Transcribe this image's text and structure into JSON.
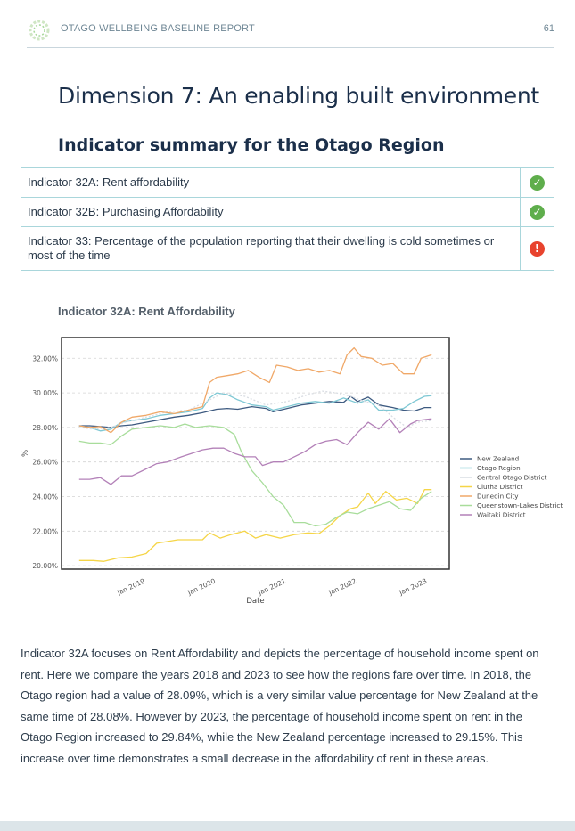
{
  "header": {
    "title": "OTAGO WELLBEING BASELINE REPORT",
    "page_number": "61",
    "logo_icon": "wellbeing-wreath-logo"
  },
  "dimension_title": "Dimension 7: An enabling built environment",
  "summary_title": "Indicator summary for the Otago Region",
  "indicators": [
    {
      "label": "Indicator 32A: Rent affordability",
      "status": "positive",
      "status_icon": "check-circle-icon",
      "color": "#5fae4c"
    },
    {
      "label": "Indicator 32B: Purchasing Affordability",
      "status": "positive",
      "status_icon": "check-circle-icon",
      "color": "#5fae4c"
    },
    {
      "label": "Indicator 33: Percentage of the population reporting that their dwelling is cold sometimes or most of the time",
      "status": "negative",
      "status_icon": "exclamation-circle-icon",
      "color": "#e8432e"
    }
  ],
  "chart_title": "Indicator 32A: Rent Affordability",
  "chart_data": {
    "type": "line",
    "xlabel": "Date",
    "ylabel": "%",
    "xlim": [
      2018.0,
      2023.5
    ],
    "ylim": [
      19.8,
      33.2
    ],
    "yticks": [
      20,
      22,
      24,
      26,
      28,
      30,
      32
    ],
    "ytick_labels": [
      "20.00%",
      "22.00%",
      "24.00%",
      "26.00%",
      "28.00%",
      "30.00%",
      "32.00%"
    ],
    "xticks": [
      2019,
      2020,
      2021,
      2022,
      2023
    ],
    "xtick_labels": [
      "Jan 2019",
      "Jan 2020",
      "Jan 2021",
      "Jan 2022",
      "Jan 2023"
    ],
    "grid": true,
    "legend_position": "right",
    "series": [
      {
        "name": "New Zealand",
        "color": "#3d5a80",
        "points": [
          [
            2018.25,
            28.1
          ],
          [
            2018.4,
            28.1
          ],
          [
            2018.55,
            28.05
          ],
          [
            2018.7,
            28.0
          ],
          [
            2018.85,
            28.1
          ],
          [
            2019.0,
            28.15
          ],
          [
            2019.2,
            28.3
          ],
          [
            2019.4,
            28.45
          ],
          [
            2019.6,
            28.6
          ],
          [
            2019.8,
            28.7
          ],
          [
            2020.0,
            28.85
          ],
          [
            2020.2,
            29.05
          ],
          [
            2020.35,
            29.1
          ],
          [
            2020.5,
            29.05
          ],
          [
            2020.7,
            29.2
          ],
          [
            2020.9,
            29.1
          ],
          [
            2021.0,
            28.9
          ],
          [
            2021.2,
            29.1
          ],
          [
            2021.4,
            29.3
          ],
          [
            2021.6,
            29.4
          ],
          [
            2021.8,
            29.5
          ],
          [
            2022.0,
            29.45
          ],
          [
            2022.1,
            29.8
          ],
          [
            2022.2,
            29.5
          ],
          [
            2022.35,
            29.75
          ],
          [
            2022.5,
            29.3
          ],
          [
            2022.7,
            29.15
          ],
          [
            2022.85,
            29.0
          ],
          [
            2023.0,
            28.95
          ],
          [
            2023.15,
            29.15
          ],
          [
            2023.25,
            29.15
          ]
        ]
      },
      {
        "name": "Otago Region",
        "color": "#7fc8d4",
        "points": [
          [
            2018.25,
            28.09
          ],
          [
            2018.4,
            28.0
          ],
          [
            2018.55,
            27.8
          ],
          [
            2018.7,
            27.9
          ],
          [
            2018.85,
            28.3
          ],
          [
            2019.0,
            28.4
          ],
          [
            2019.2,
            28.5
          ],
          [
            2019.4,
            28.7
          ],
          [
            2019.6,
            28.8
          ],
          [
            2019.8,
            28.9
          ],
          [
            2020.0,
            29.1
          ],
          [
            2020.1,
            29.7
          ],
          [
            2020.2,
            30.0
          ],
          [
            2020.35,
            29.9
          ],
          [
            2020.5,
            29.6
          ],
          [
            2020.7,
            29.3
          ],
          [
            2020.9,
            29.2
          ],
          [
            2021.0,
            29.0
          ],
          [
            2021.2,
            29.2
          ],
          [
            2021.4,
            29.4
          ],
          [
            2021.6,
            29.5
          ],
          [
            2021.8,
            29.4
          ],
          [
            2022.0,
            29.7
          ],
          [
            2022.2,
            29.4
          ],
          [
            2022.35,
            29.6
          ],
          [
            2022.5,
            29.0
          ],
          [
            2022.7,
            29.0
          ],
          [
            2022.85,
            29.1
          ],
          [
            2023.0,
            29.5
          ],
          [
            2023.15,
            29.8
          ],
          [
            2023.25,
            29.84
          ]
        ]
      },
      {
        "name": "Central Otago District",
        "color": "#d9dde3",
        "points": [
          [
            2018.25,
            28.0
          ],
          [
            2018.45,
            27.9
          ],
          [
            2018.7,
            28.0
          ],
          [
            2018.9,
            28.3
          ],
          [
            2019.2,
            28.6
          ],
          [
            2019.5,
            28.9
          ],
          [
            2019.8,
            29.0
          ],
          [
            2020.1,
            29.6
          ],
          [
            2020.3,
            30.0
          ],
          [
            2020.6,
            29.8
          ],
          [
            2020.9,
            29.3
          ],
          [
            2021.2,
            29.5
          ],
          [
            2021.5,
            29.9
          ],
          [
            2021.7,
            30.1
          ],
          [
            2021.9,
            30.0
          ],
          [
            2022.1,
            29.8
          ],
          [
            2022.3,
            29.5
          ],
          [
            2022.5,
            29.3
          ],
          [
            2022.7,
            28.6
          ],
          [
            2022.9,
            28.0
          ],
          [
            2023.05,
            28.3
          ],
          [
            2023.25,
            28.4
          ]
        ]
      },
      {
        "name": "Clutha District",
        "color": "#f5d547",
        "points": [
          [
            2018.25,
            20.3
          ],
          [
            2018.45,
            20.3
          ],
          [
            2018.6,
            20.25
          ],
          [
            2018.8,
            20.45
          ],
          [
            2019.0,
            20.5
          ],
          [
            2019.2,
            20.7
          ],
          [
            2019.35,
            21.3
          ],
          [
            2019.5,
            21.4
          ],
          [
            2019.65,
            21.5
          ],
          [
            2019.85,
            21.5
          ],
          [
            2020.0,
            21.5
          ],
          [
            2020.1,
            21.9
          ],
          [
            2020.25,
            21.6
          ],
          [
            2020.4,
            21.8
          ],
          [
            2020.6,
            22.0
          ],
          [
            2020.75,
            21.6
          ],
          [
            2020.9,
            21.8
          ],
          [
            2021.1,
            21.6
          ],
          [
            2021.3,
            21.8
          ],
          [
            2021.5,
            21.9
          ],
          [
            2021.65,
            21.85
          ],
          [
            2021.8,
            22.3
          ],
          [
            2021.95,
            22.9
          ],
          [
            2022.1,
            23.3
          ],
          [
            2022.2,
            23.4
          ],
          [
            2022.35,
            24.2
          ],
          [
            2022.45,
            23.6
          ],
          [
            2022.6,
            24.3
          ],
          [
            2022.75,
            23.8
          ],
          [
            2022.9,
            23.9
          ],
          [
            2023.05,
            23.6
          ],
          [
            2023.15,
            24.4
          ],
          [
            2023.25,
            24.4
          ]
        ]
      },
      {
        "name": "Dunedin City",
        "color": "#f0a868",
        "points": [
          [
            2018.25,
            28.1
          ],
          [
            2018.4,
            28.0
          ],
          [
            2018.55,
            28.05
          ],
          [
            2018.7,
            27.7
          ],
          [
            2018.85,
            28.3
          ],
          [
            2019.0,
            28.6
          ],
          [
            2019.2,
            28.7
          ],
          [
            2019.4,
            28.9
          ],
          [
            2019.6,
            28.8
          ],
          [
            2019.8,
            29.0
          ],
          [
            2020.0,
            29.2
          ],
          [
            2020.1,
            30.6
          ],
          [
            2020.2,
            30.9
          ],
          [
            2020.35,
            31.0
          ],
          [
            2020.5,
            31.1
          ],
          [
            2020.65,
            31.3
          ],
          [
            2020.8,
            30.9
          ],
          [
            2020.95,
            30.6
          ],
          [
            2021.05,
            31.6
          ],
          [
            2021.2,
            31.5
          ],
          [
            2021.35,
            31.3
          ],
          [
            2021.5,
            31.4
          ],
          [
            2021.65,
            31.2
          ],
          [
            2021.8,
            31.3
          ],
          [
            2021.95,
            31.1
          ],
          [
            2022.05,
            32.2
          ],
          [
            2022.15,
            32.6
          ],
          [
            2022.25,
            32.1
          ],
          [
            2022.4,
            32.0
          ],
          [
            2022.55,
            31.6
          ],
          [
            2022.7,
            31.7
          ],
          [
            2022.85,
            31.1
          ],
          [
            2023.0,
            31.1
          ],
          [
            2023.1,
            32.0
          ],
          [
            2023.25,
            32.2
          ]
        ]
      },
      {
        "name": "Queenstown-Lakes District",
        "color": "#a8dd9b",
        "points": [
          [
            2018.25,
            27.2
          ],
          [
            2018.4,
            27.1
          ],
          [
            2018.55,
            27.1
          ],
          [
            2018.7,
            27.0
          ],
          [
            2018.85,
            27.5
          ],
          [
            2019.0,
            27.9
          ],
          [
            2019.2,
            28.0
          ],
          [
            2019.4,
            28.1
          ],
          [
            2019.6,
            28.0
          ],
          [
            2019.75,
            28.2
          ],
          [
            2019.9,
            28.0
          ],
          [
            2020.1,
            28.1
          ],
          [
            2020.3,
            28.0
          ],
          [
            2020.45,
            27.6
          ],
          [
            2020.55,
            26.6
          ],
          [
            2020.7,
            25.5
          ],
          [
            2020.85,
            24.8
          ],
          [
            2021.0,
            24.0
          ],
          [
            2021.15,
            23.5
          ],
          [
            2021.3,
            22.5
          ],
          [
            2021.45,
            22.5
          ],
          [
            2021.6,
            22.3
          ],
          [
            2021.75,
            22.4
          ],
          [
            2021.9,
            22.8
          ],
          [
            2022.05,
            23.1
          ],
          [
            2022.2,
            23.0
          ],
          [
            2022.35,
            23.3
          ],
          [
            2022.5,
            23.5
          ],
          [
            2022.65,
            23.7
          ],
          [
            2022.8,
            23.3
          ],
          [
            2022.95,
            23.2
          ],
          [
            2023.1,
            23.9
          ],
          [
            2023.25,
            24.3
          ]
        ]
      },
      {
        "name": "Waitaki District",
        "color": "#b381b8",
        "points": [
          [
            2018.25,
            25.0
          ],
          [
            2018.4,
            25.0
          ],
          [
            2018.55,
            25.1
          ],
          [
            2018.7,
            24.7
          ],
          [
            2018.85,
            25.2
          ],
          [
            2019.0,
            25.2
          ],
          [
            2019.2,
            25.6
          ],
          [
            2019.35,
            25.9
          ],
          [
            2019.5,
            26.0
          ],
          [
            2019.7,
            26.3
          ],
          [
            2019.85,
            26.5
          ],
          [
            2020.0,
            26.7
          ],
          [
            2020.15,
            26.8
          ],
          [
            2020.3,
            26.8
          ],
          [
            2020.45,
            26.5
          ],
          [
            2020.6,
            26.3
          ],
          [
            2020.75,
            26.3
          ],
          [
            2020.85,
            25.8
          ],
          [
            2021.0,
            26.0
          ],
          [
            2021.15,
            26.0
          ],
          [
            2021.3,
            26.3
          ],
          [
            2021.45,
            26.6
          ],
          [
            2021.6,
            27.0
          ],
          [
            2021.75,
            27.2
          ],
          [
            2021.9,
            27.3
          ],
          [
            2022.05,
            27.0
          ],
          [
            2022.2,
            27.7
          ],
          [
            2022.35,
            28.3
          ],
          [
            2022.5,
            27.9
          ],
          [
            2022.65,
            28.5
          ],
          [
            2022.8,
            27.7
          ],
          [
            2022.95,
            28.2
          ],
          [
            2023.05,
            28.4
          ],
          [
            2023.25,
            28.5
          ]
        ]
      }
    ]
  },
  "body_text": "Indicator 32A focuses on Rent Affordability and depicts the percentage of household income spent on rent. Here we compare the years 2018 and 2023 to see how the regions fare over time. In 2018, the Otago region had a value of 28.09%, which is a very similar value percentage for New Zealand at the same time of 28.08%. However by 2023, the percentage of household income spent on rent in the Otago Region increased to 29.84%, while the New Zealand percentage increased to 29.15%. This increase over time demonstrates a small decrease in the affordability of rent in these areas."
}
